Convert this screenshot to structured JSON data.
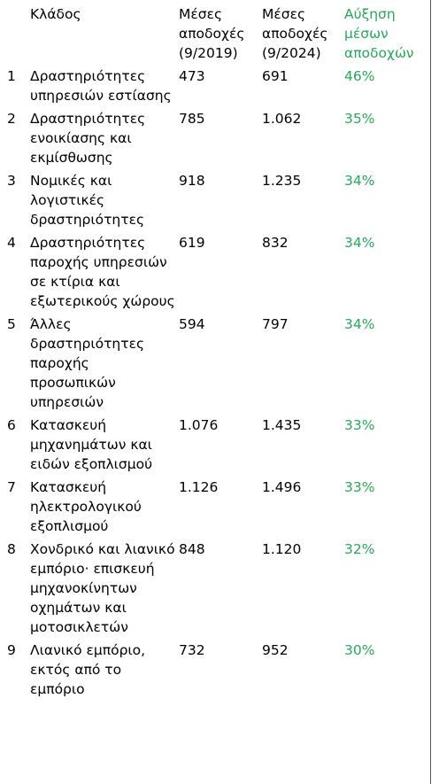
{
  "table": {
    "headers": {
      "index": "",
      "sector": "Κλάδος",
      "wage_2019": "Μέσες αποδοχές (9/2019)",
      "wage_2024": "Μέσες αποδοχές (9/2024)",
      "growth": "Αύξηση μέσων αποδοχών"
    },
    "rows": [
      {
        "index": "1",
        "sector": "Δραστηριότητες υπηρεσιών εστίασης",
        "wage_2019": "473",
        "wage_2024": "691",
        "growth": "46%"
      },
      {
        "index": "2",
        "sector": "Δραστηριότητες ενοικίασης και εκμίσθωσης",
        "wage_2019": "785",
        "wage_2024": "1.062",
        "growth": "35%"
      },
      {
        "index": "3",
        "sector": "Νομικές και λογιστικές δραστηριότητες",
        "wage_2019": "918",
        "wage_2024": "1.235",
        "growth": "34%"
      },
      {
        "index": "4",
        "sector": "Δραστηριότητες παροχής υπηρεσιών σε κτίρια και εξωτερικούς χώρους",
        "wage_2019": "619",
        "wage_2024": "832",
        "growth": "34%"
      },
      {
        "index": "5",
        "sector": "Άλλες δραστηριότητες παροχής προσωπικών υπηρεσιών",
        "wage_2019": "594",
        "wage_2024": "797",
        "growth": "34%"
      },
      {
        "index": "6",
        "sector": "Κατασκευή μηχανημάτων και ειδών εξοπλισμού",
        "wage_2019": "1.076",
        "wage_2024": "1.435",
        "growth": "33%"
      },
      {
        "index": "7",
        "sector": "Κατασκευή ηλεκτρολογικού εξοπλισμού",
        "wage_2019": "1.126",
        "wage_2024": "1.496",
        "growth": "33%"
      },
      {
        "index": "8",
        "sector": "Χονδρικό και λιανικό εμπόριο· επισκευή μηχανοκίνητων οχημάτων και μοτοσικλετών",
        "wage_2019": "848",
        "wage_2024": "1.120",
        "growth": "32%"
      },
      {
        "index": "9",
        "sector": "Λιανικό εμπόριο, εκτός από το εμπόριο",
        "wage_2019": "732",
        "wage_2024": "952",
        "growth": "30%"
      }
    ]
  },
  "colors": {
    "growth_text": "#27a85a",
    "body_text": "#000000",
    "border": "#555555"
  }
}
